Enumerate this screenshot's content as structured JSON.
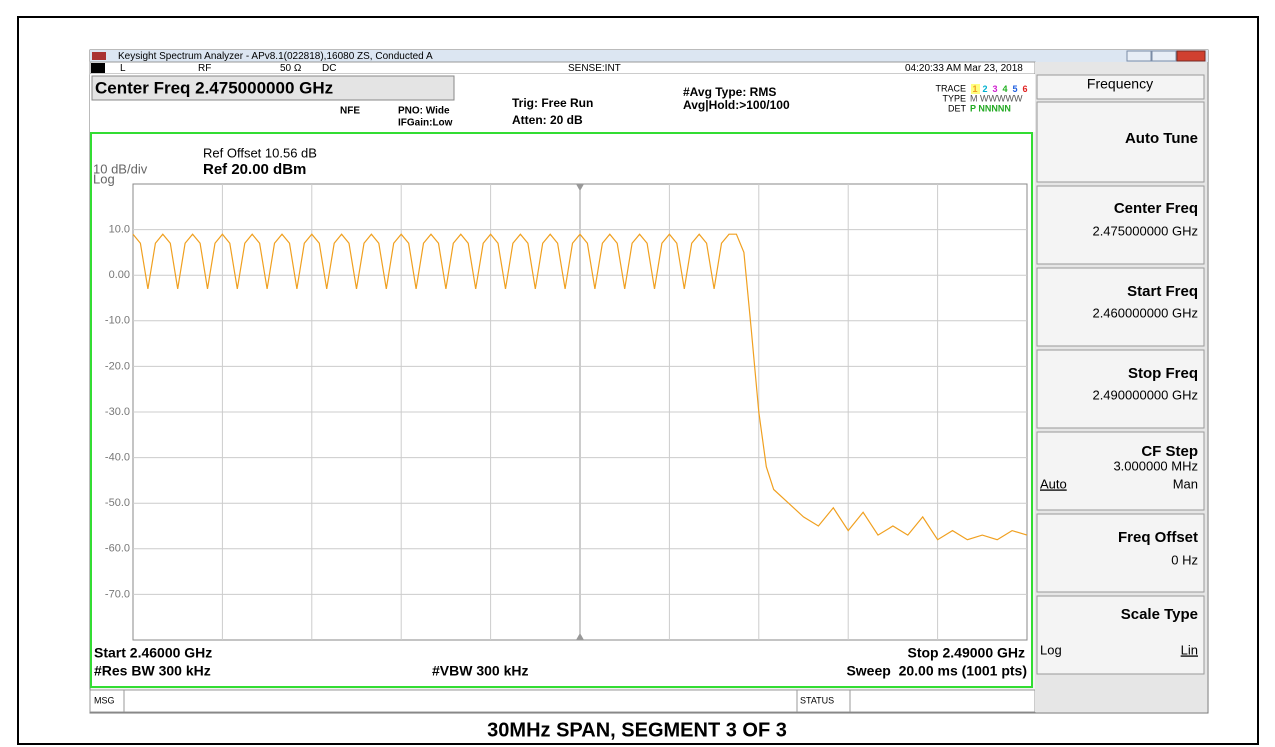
{
  "window_title": "Keysight Spectrum Analyzer - APv8.1(022818),16080 ZS, Conducted A",
  "status_row": {
    "mode": "L",
    "input": "RF",
    "impedance": "50 Ω",
    "coupling": "DC",
    "sense": "SENSE:INT",
    "timestamp": "04:20:33 AM Mar 23, 2018"
  },
  "settings": {
    "center_freq": "Center Freq 2.475000000 GHz",
    "nfe": "NFE",
    "pno": "PNO: Wide",
    "ifgain": "IFGain:Low",
    "trig": "Trig: Free Run",
    "atten": "Atten: 20 dB",
    "avg_type": "#Avg Type: RMS",
    "avg_hold": "Avg|Hold:>100/100",
    "trace_label": "TRACE",
    "trace_numbers": [
      "1",
      "2",
      "3",
      "4",
      "5",
      "6"
    ],
    "type_label": "TYPE",
    "type_values": "M WWWWW",
    "det_label": "DET",
    "det_values": "P NNNNN"
  },
  "graph": {
    "ref_offset": "Ref Offset 10.56 dB",
    "scale": "10 dB/div",
    "scale_type": "Log",
    "ref_level": "Ref 20.00 dBm",
    "start": "Start 2.46000 GHz",
    "stop": "Stop 2.49000 GHz",
    "res_bw": "#Res BW 300 kHz",
    "vbw": "#VBW 300 kHz",
    "sweep": "Sweep  20.00 ms (1001 pts)"
  },
  "chart_data": {
    "type": "line",
    "color": "#f0a020",
    "xlim": [
      2.46,
      2.49
    ],
    "ylim": [
      -80,
      20
    ],
    "yticks": [
      {
        "value": 10,
        "label": "10.0"
      },
      {
        "value": 0,
        "label": "0.00"
      },
      {
        "value": -10,
        "label": "-10.0"
      },
      {
        "value": -20,
        "label": "-20.0"
      },
      {
        "value": -30,
        "label": "-30.0"
      },
      {
        "value": -40,
        "label": "-40.0"
      },
      {
        "value": -50,
        "label": "-50.0"
      },
      {
        "value": -60,
        "label": "-60.0"
      },
      {
        "value": -70,
        "label": "-70.0"
      }
    ],
    "grid": true,
    "x": [
      2.46,
      2.46025,
      2.4605,
      2.46075,
      2.461,
      2.46125,
      2.4615,
      2.46175,
      2.462,
      2.46225,
      2.4625,
      2.46275,
      2.463,
      2.46325,
      2.4635,
      2.46375,
      2.464,
      2.46425,
      2.4645,
      2.46475,
      2.465,
      2.46525,
      2.4655,
      2.46575,
      2.466,
      2.46625,
      2.4665,
      2.46675,
      2.467,
      2.46725,
      2.4675,
      2.46775,
      2.468,
      2.46825,
      2.4685,
      2.46875,
      2.469,
      2.46925,
      2.4695,
      2.46975,
      2.47,
      2.47025,
      2.4705,
      2.47075,
      2.471,
      2.47125,
      2.4715,
      2.47175,
      2.472,
      2.47225,
      2.4725,
      2.47275,
      2.473,
      2.47325,
      2.4735,
      2.47375,
      2.474,
      2.47425,
      2.4745,
      2.47475,
      2.475,
      2.47525,
      2.4755,
      2.47575,
      2.476,
      2.47625,
      2.4765,
      2.47675,
      2.477,
      2.47725,
      2.4775,
      2.47775,
      2.478,
      2.47825,
      2.4785,
      2.47875,
      2.479,
      2.47925,
      2.4795,
      2.47975,
      2.48,
      2.48025,
      2.4805,
      2.48075,
      2.481,
      2.48125,
      2.4815,
      2.482,
      2.4825,
      2.483,
      2.4835,
      2.484,
      2.4845,
      2.485,
      2.4855,
      2.486,
      2.4865,
      2.487,
      2.4875,
      2.488,
      2.4885,
      2.489,
      2.4895,
      2.49
    ],
    "values": [
      9,
      7,
      -3,
      7,
      9,
      7,
      -3,
      7,
      9,
      7,
      -3,
      7,
      9,
      7,
      -3,
      7,
      9,
      7,
      -3,
      7,
      9,
      7,
      -3,
      7,
      9,
      7,
      -3,
      7,
      9,
      7,
      -3,
      7,
      9,
      7,
      -3,
      7,
      9,
      7,
      -3,
      7,
      9,
      7,
      -3,
      7,
      9,
      7,
      -3,
      7,
      9,
      7,
      -3,
      7,
      9,
      7,
      -3,
      7,
      9,
      7,
      -3,
      7,
      9,
      7,
      -3,
      7,
      9,
      7,
      -3,
      7,
      9,
      7,
      -3,
      7,
      9,
      7,
      -3,
      7,
      9,
      7,
      -3,
      7,
      9,
      9,
      5,
      -12,
      -30,
      -42,
      -47,
      -50,
      -53,
      -55,
      -51,
      -56,
      -52,
      -57,
      -55,
      -57,
      -53,
      -58,
      -56,
      -58,
      -57,
      -58,
      -56,
      -57
    ]
  },
  "bottom_bar": {
    "msg": "MSG",
    "status": "STATUS"
  },
  "softkeys": {
    "menu": "Frequency",
    "auto_tune": "Auto Tune",
    "center_freq": {
      "label": "Center Freq",
      "value": "2.475000000 GHz"
    },
    "start_freq": {
      "label": "Start Freq",
      "value": "2.460000000 GHz"
    },
    "stop_freq": {
      "label": "Stop Freq",
      "value": "2.490000000 GHz"
    },
    "cf_step": {
      "label": "CF Step",
      "value": "3.000000 MHz",
      "auto": "Auto",
      "man": "Man"
    },
    "freq_offset": {
      "label": "Freq Offset",
      "value": "0 Hz"
    },
    "scale_type": {
      "label": "Scale Type",
      "log": "Log",
      "lin": "Lin"
    }
  },
  "caption": "30MHz SPAN, SEGMENT 3 OF 3"
}
